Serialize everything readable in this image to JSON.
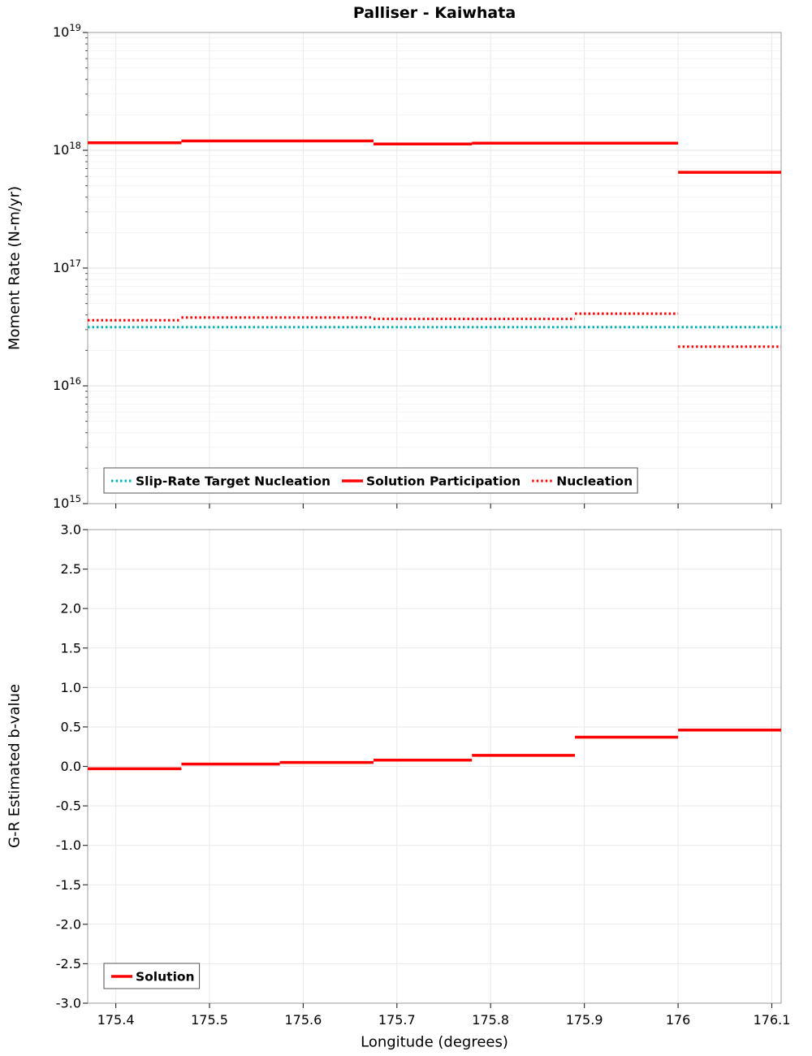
{
  "figure": {
    "background": "#ffffff",
    "accent_red": "#ff0000",
    "accent_teal": "#00b2b2"
  },
  "chart_data": [
    {
      "name": "moment-rate-chart",
      "type": "line",
      "title": "Palliser - Kaiwhata",
      "ylabel": "Moment Rate (N-m/yr)",
      "yscale": "log",
      "ylim": [
        1000000000000000.0,
        1e+19
      ],
      "xlim": [
        175.37,
        176.11
      ],
      "grid": true,
      "legend_position": "lower-left",
      "yticks": {
        "exponents": [
          19,
          18,
          17,
          16,
          15
        ]
      },
      "series": [
        {
          "name": "Slip-Rate Target Nucleation",
          "color": "#00b2b2",
          "style": "dotted",
          "segments": [
            [
              175.37,
              176.11,
              3.15e+16
            ]
          ]
        },
        {
          "name": "Solution Participation",
          "color": "#ff0000",
          "style": "solid",
          "segments": [
            [
              175.37,
              175.47,
              1.16e+18
            ],
            [
              175.47,
              175.675,
              1.2e+18
            ],
            [
              175.675,
              175.78,
              1.13e+18
            ],
            [
              175.78,
              176.0,
              1.15e+18
            ],
            [
              176.0,
              176.11,
              6.5e+17
            ]
          ]
        },
        {
          "name": "Nucleation",
          "color": "#ff0000",
          "style": "dotted",
          "segments": [
            [
              175.37,
              175.47,
              3.6e+16
            ],
            [
              175.47,
              175.675,
              3.8e+16
            ],
            [
              175.675,
              175.89,
              3.7e+16
            ],
            [
              175.89,
              176.0,
              4.1e+16
            ],
            [
              176.0,
              176.11,
              2.15e+16
            ]
          ]
        }
      ]
    },
    {
      "name": "b-value-chart",
      "type": "line",
      "ylabel": "G-R Estimated b-value",
      "xlabel": "Longitude (degrees)",
      "yscale": "linear",
      "ylim": [
        -3,
        3
      ],
      "xlim": [
        175.37,
        176.11
      ],
      "grid": true,
      "legend_position": "lower-left",
      "yticks": {
        "values": [
          3,
          2.5,
          2,
          1.5,
          1,
          0.5,
          0,
          -0.5,
          -1,
          -1.5,
          -2,
          -2.5,
          -3
        ],
        "labels": [
          "3.0",
          "2.5",
          "2.0",
          "1.5",
          "1.0",
          "0.5",
          "0.0",
          "-0.5",
          "-1.0",
          "-1.5",
          "-2.0",
          "-2.5",
          "-3.0"
        ]
      },
      "xticks": {
        "values": [
          175.4,
          175.5,
          175.6,
          175.7,
          175.8,
          175.9,
          176,
          176.1
        ],
        "labels": [
          "175.4",
          "175.5",
          "175.6",
          "175.7",
          "175.8",
          "175.9",
          "176",
          "176.1"
        ]
      },
      "series": [
        {
          "name": "Solution",
          "color": "#ff0000",
          "style": "solid",
          "segments": [
            [
              175.37,
              175.47,
              -0.03
            ],
            [
              175.47,
              175.575,
              0.03
            ],
            [
              175.575,
              175.675,
              0.05
            ],
            [
              175.675,
              175.78,
              0.08
            ],
            [
              175.78,
              175.89,
              0.14
            ],
            [
              175.89,
              176.0,
              0.37
            ],
            [
              176.0,
              176.11,
              0.46
            ]
          ]
        }
      ]
    }
  ]
}
